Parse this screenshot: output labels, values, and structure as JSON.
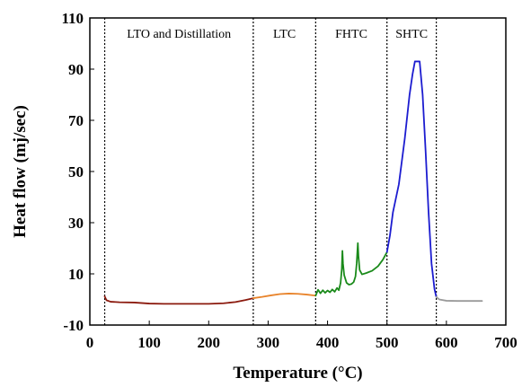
{
  "chart_data": {
    "type": "line",
    "title": "",
    "xlabel": "Temperature (°C)",
    "ylabel": "Heat flow (mj/sec)",
    "xlim": [
      0,
      700
    ],
    "ylim": [
      -10,
      110
    ],
    "xticks": [
      0,
      100,
      200,
      300,
      400,
      500,
      600,
      700
    ],
    "yticks": [
      -10,
      10,
      30,
      50,
      70,
      90,
      110
    ],
    "grid": false,
    "legend": "none",
    "regions": [
      {
        "label": "LTO and Distillation",
        "x_start": 25,
        "x_end": 275
      },
      {
        "label": "LTC",
        "x_start": 275,
        "x_end": 380
      },
      {
        "label": "FHTC",
        "x_start": 380,
        "x_end": 500
      },
      {
        "label": "SHTC",
        "x_start": 500,
        "x_end": 583
      }
    ],
    "boundaries": [
      25,
      275,
      380,
      500,
      583
    ],
    "series": [
      {
        "color": "#8B1A0E",
        "points": [
          [
            25,
            1.2
          ],
          [
            28,
            -0.3
          ],
          [
            35,
            -0.9
          ],
          [
            50,
            -1.1
          ],
          [
            75,
            -1.2
          ],
          [
            100,
            -1.6
          ],
          [
            125,
            -1.7
          ],
          [
            150,
            -1.7
          ],
          [
            175,
            -1.7
          ],
          [
            200,
            -1.7
          ],
          [
            225,
            -1.5
          ],
          [
            245,
            -1.0
          ],
          [
            262,
            -0.2
          ],
          [
            275,
            0.5
          ]
        ]
      },
      {
        "color": "#E8832A",
        "points": [
          [
            275,
            0.5
          ],
          [
            290,
            1.0
          ],
          [
            305,
            1.6
          ],
          [
            320,
            2.1
          ],
          [
            335,
            2.3
          ],
          [
            350,
            2.2
          ],
          [
            365,
            1.9
          ],
          [
            380,
            1.5
          ]
        ]
      },
      {
        "color": "#1A8A1A",
        "points": [
          [
            380,
            1.5
          ],
          [
            384,
            3.8
          ],
          [
            388,
            2.4
          ],
          [
            392,
            3.6
          ],
          [
            396,
            2.6
          ],
          [
            400,
            3.5
          ],
          [
            404,
            2.8
          ],
          [
            408,
            3.9
          ],
          [
            412,
            3.0
          ],
          [
            416,
            4.5
          ],
          [
            419,
            3.6
          ],
          [
            422,
            6.5
          ],
          [
            424,
            12
          ],
          [
            425,
            19
          ],
          [
            426,
            14
          ],
          [
            428,
            9.5
          ],
          [
            432,
            6.5
          ],
          [
            436,
            5.8
          ],
          [
            440,
            6.0
          ],
          [
            444,
            6.8
          ],
          [
            447,
            9.0
          ],
          [
            449,
            14
          ],
          [
            451,
            22
          ],
          [
            452,
            17
          ],
          [
            454,
            11.5
          ],
          [
            458,
            9.8
          ],
          [
            465,
            10.3
          ],
          [
            475,
            11.2
          ],
          [
            485,
            13.0
          ],
          [
            493,
            15.5
          ],
          [
            500,
            18.5
          ]
        ]
      },
      {
        "color": "#1C1CD0",
        "points": [
          [
            500,
            18.5
          ],
          [
            505,
            25
          ],
          [
            510,
            34
          ],
          [
            520,
            45
          ],
          [
            530,
            63
          ],
          [
            538,
            80
          ],
          [
            543,
            88
          ],
          [
            547,
            93
          ],
          [
            555,
            93
          ],
          [
            560,
            80
          ],
          [
            565,
            58
          ],
          [
            570,
            34
          ],
          [
            575,
            14
          ],
          [
            580,
            4
          ],
          [
            583,
            1
          ]
        ]
      },
      {
        "color": "#9A9A9A",
        "points": [
          [
            583,
            1
          ],
          [
            588,
            0
          ],
          [
            600,
            -0.5
          ],
          [
            620,
            -0.6
          ],
          [
            640,
            -0.6
          ],
          [
            660,
            -0.6
          ]
        ]
      }
    ]
  }
}
